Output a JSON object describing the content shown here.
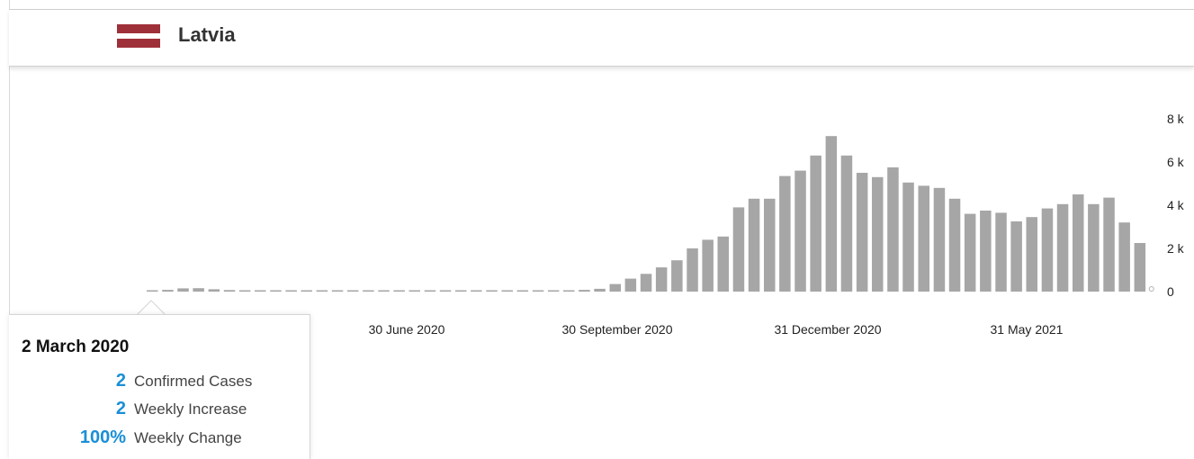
{
  "header": {
    "country": "Latvia",
    "flag_colors": [
      "#9e3039",
      "#ffffff",
      "#9e3039"
    ]
  },
  "tooltip": {
    "date": "2 March 2020",
    "rows": [
      {
        "value": "2",
        "label": "Confirmed Cases"
      },
      {
        "value": "2",
        "label": "Weekly Increase"
      },
      {
        "value": "100%",
        "label": "Weekly Change"
      }
    ]
  },
  "colors": {
    "bar": "#a6a6a6",
    "accent": "#1a8fd6"
  },
  "chart_data": {
    "type": "bar",
    "title": "",
    "xlabel": "",
    "ylabel": "",
    "ylim": [
      0,
      8000
    ],
    "y_ticks": [
      0,
      2000,
      4000,
      6000,
      8000
    ],
    "y_tick_labels": [
      "0",
      "2 k",
      "4 k",
      "6 k",
      "8 k"
    ],
    "y_axis_position": "right",
    "x_tick_labels": [
      "30 June 2020",
      "30 September 2020",
      "31 December 2020",
      "31 May 2021"
    ],
    "grid": false,
    "series": [
      {
        "values": [
          30,
          80,
          150,
          160,
          110,
          70,
          60,
          40,
          40,
          30,
          30,
          20,
          20,
          15,
          15,
          15,
          20,
          40,
          40,
          50,
          30,
          30,
          50,
          60,
          50,
          50,
          50,
          60,
          80,
          130,
          350,
          600,
          820,
          1120,
          1450,
          2000,
          2400,
          2550,
          3900,
          4300,
          4300,
          5350,
          5600,
          6300,
          7200,
          6300,
          5500,
          5300,
          5750,
          5050,
          4900,
          4800,
          4300,
          3600,
          3750,
          3650,
          3250,
          3450,
          3850,
          4050,
          4500,
          4050,
          4350,
          3200,
          2250
        ]
      }
    ]
  }
}
